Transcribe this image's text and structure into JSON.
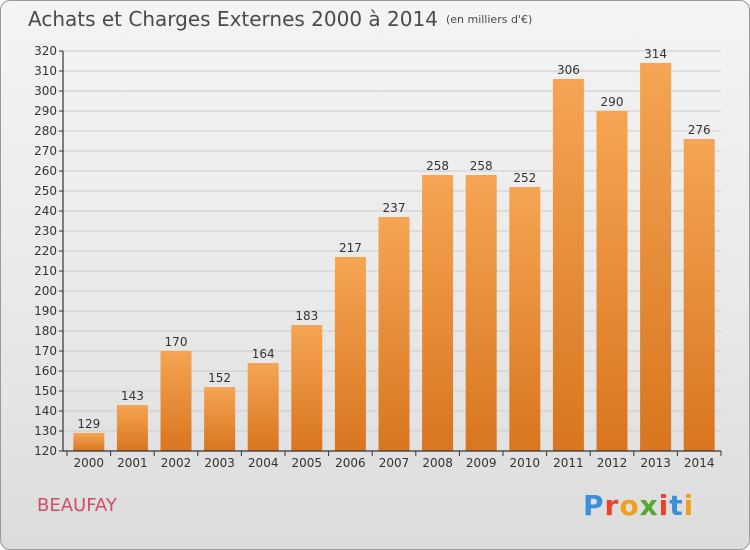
{
  "header": {
    "title": "Achats et Charges Externes 2000 à 2014",
    "unit_note": "(en milliers d'€)"
  },
  "footer": {
    "commune": "BEAUFAY",
    "logo_text": "Proxiti",
    "logo_colors": [
      "#3a8fd8",
      "#e8442c",
      "#f0a020",
      "#55a832",
      "#e8442c",
      "#3a8fd8",
      "#f0a020"
    ]
  },
  "colors": {
    "bar_top": "#f5a553",
    "bar_bottom": "#d9751f",
    "axis": "#333333",
    "grid": "#cccccc",
    "title": "#4a4a4a",
    "commune": "#d44b6b"
  },
  "chart_data": {
    "type": "bar",
    "title": "Achats et Charges Externes 2000 à 2014",
    "subtitle": "(en milliers d'€)",
    "xlabel": "",
    "ylabel": "",
    "categories": [
      "2000",
      "2001",
      "2002",
      "2003",
      "2004",
      "2005",
      "2006",
      "2007",
      "2008",
      "2009",
      "2010",
      "2011",
      "2012",
      "2013",
      "2014"
    ],
    "values": [
      129,
      143,
      170,
      152,
      164,
      183,
      217,
      237,
      258,
      258,
      252,
      306,
      290,
      314,
      276
    ],
    "ylim": [
      120,
      320
    ],
    "ytick_step": 10,
    "grid": "horizontal",
    "data_labels": true
  }
}
